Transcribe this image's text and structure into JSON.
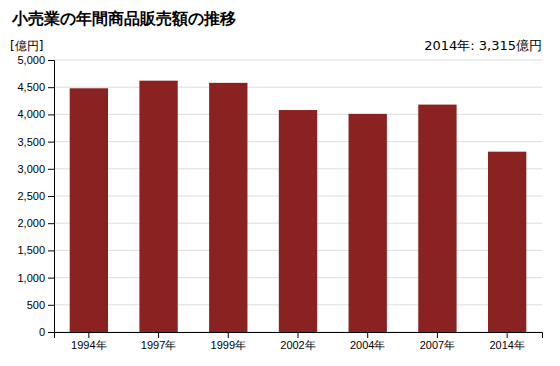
{
  "chart_data": {
    "type": "bar",
    "title": "小売業の年間商品販売額の推移",
    "ylabel": "[億円]",
    "annotation": "2014年: 3,315億円",
    "categories": [
      "1994年",
      "1997年",
      "1999年",
      "2002年",
      "2004年",
      "2007年",
      "2014年"
    ],
    "values": [
      4480,
      4620,
      4580,
      4080,
      4010,
      4180,
      3315
    ],
    "color": "#8B2222",
    "ylim": [
      0,
      5000
    ],
    "yticks": [
      0,
      500,
      {
        "value": 1000,
        "label": "1,000"
      },
      {
        "value": 1500,
        "label": "1,500"
      },
      {
        "value": 2000,
        "label": "2,000"
      },
      {
        "value": 2500,
        "label": "2,500"
      },
      {
        "value": 3000,
        "label": "3,000"
      },
      {
        "value": 3500,
        "label": "3,500"
      },
      {
        "value": 4000,
        "label": "4,000"
      },
      {
        "value": 4500,
        "label": "4,500"
      },
      {
        "value": 5000,
        "label": "5,000"
      }
    ],
    "grid": true
  }
}
